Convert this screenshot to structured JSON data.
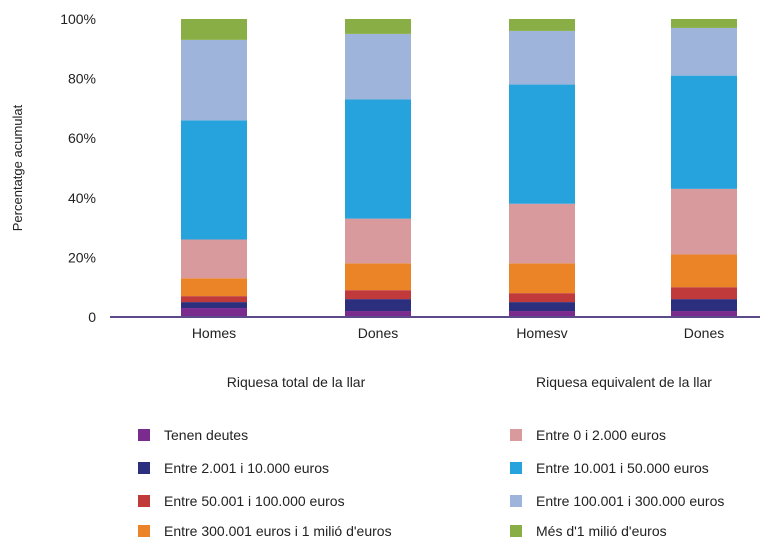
{
  "chart_data": {
    "type": "bar",
    "stacked": true,
    "ylabel": "Percentatge acumulat",
    "ylim": [
      0,
      100
    ],
    "yticks": [
      "0",
      "20%",
      "40%",
      "60%",
      "80%",
      "100%"
    ],
    "categories": [
      "Homes",
      "Dones",
      "Homesv",
      "Dones"
    ],
    "group_labels": [
      "Riquesa total de la llar",
      "Riquesa equivalent de la llar"
    ],
    "series": [
      {
        "name": "Tenen deutes",
        "color": "#7b2a8e",
        "values": [
          3,
          2,
          2,
          2
        ]
      },
      {
        "name": "Entre 2.001 i 10.000 euros",
        "color": "#2b2f7e",
        "values": [
          2,
          4,
          3,
          4
        ]
      },
      {
        "name": "Entre 50.001 i 100.000 euros",
        "color": "#c0393b",
        "values": [
          2,
          3,
          3,
          4
        ]
      },
      {
        "name": "Entre 300.001 euros i 1 milió d'euros",
        "color": "#ea8427",
        "values": [
          6,
          9,
          10,
          11
        ]
      },
      {
        "name": "Entre 0 i 2.000 euros",
        "color": "#d99a9d",
        "values": [
          13,
          15,
          20,
          22
        ]
      },
      {
        "name": "Entre 10.001 i 50.000 euros",
        "color": "#26a3dc",
        "values": [
          40,
          40,
          40,
          38
        ]
      },
      {
        "name": "Entre 100.001 i 300.000 euros",
        "color": "#9fb4da",
        "values": [
          27,
          22,
          18,
          16
        ]
      },
      {
        "name": "Més d'1 milió d'euros",
        "color": "#8aae46",
        "values": [
          7,
          5,
          4,
          3
        ]
      }
    ],
    "legend_position": "bottom",
    "grid": false
  }
}
